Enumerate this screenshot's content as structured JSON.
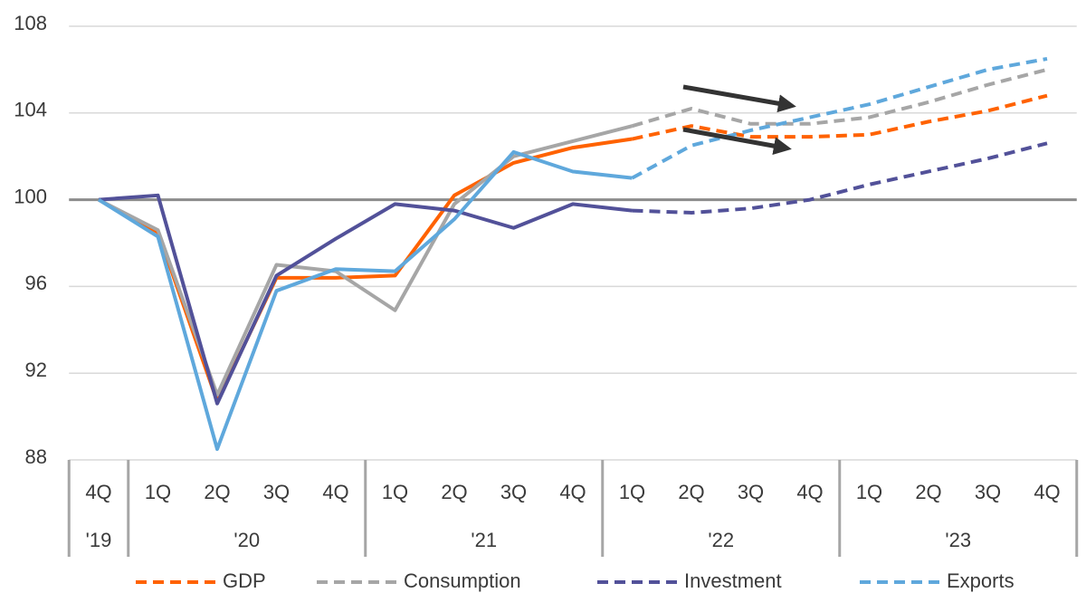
{
  "chart_data": {
    "type": "line",
    "categories": [
      "4Q",
      "1Q",
      "2Q",
      "3Q",
      "4Q",
      "1Q",
      "2Q",
      "3Q",
      "4Q",
      "1Q",
      "2Q",
      "3Q",
      "4Q",
      "1Q",
      "2Q",
      "3Q",
      "4Q"
    ],
    "year_groups": [
      {
        "label": "'19",
        "count": 1
      },
      {
        "label": "'20",
        "count": 4
      },
      {
        "label": "'21",
        "count": 4
      },
      {
        "label": "'22",
        "count": 4
      },
      {
        "label": "'23",
        "count": 4
      }
    ],
    "forecast_start_index": 9,
    "reference_line": 100,
    "series": [
      {
        "name": "GDP",
        "color": "#ff6200",
        "values": [
          100,
          98.5,
          90.7,
          96.4,
          96.4,
          96.5,
          100.2,
          101.7,
          102.4,
          102.8,
          103.4,
          102.9,
          102.9,
          103.0,
          103.6,
          104.1,
          104.8
        ]
      },
      {
        "name": "Consumption",
        "color": "#a6a6a6",
        "values": [
          100,
          98.6,
          91.0,
          97.0,
          96.7,
          94.9,
          99.8,
          102.0,
          102.7,
          103.4,
          104.2,
          103.5,
          103.5,
          103.8,
          104.5,
          105.3,
          106.0
        ]
      },
      {
        "name": "Investment",
        "color": "#525199",
        "values": [
          100,
          100.2,
          90.6,
          96.5,
          98.2,
          99.8,
          99.5,
          98.7,
          99.8,
          99.5,
          99.4,
          99.6,
          100.0,
          100.7,
          101.3,
          101.9,
          102.6
        ]
      },
      {
        "name": "Exports",
        "color": "#5fa8dc",
        "values": [
          100,
          98.3,
          88.5,
          95.8,
          96.8,
          96.7,
          99.1,
          102.2,
          101.3,
          101.0,
          102.5,
          103.2,
          103.8,
          104.4,
          105.2,
          106.0,
          106.5
        ]
      }
    ],
    "ylim": [
      88,
      108
    ],
    "yticks": [
      88,
      92,
      96,
      100,
      104,
      108
    ],
    "grid": true,
    "legend": "bottom"
  }
}
